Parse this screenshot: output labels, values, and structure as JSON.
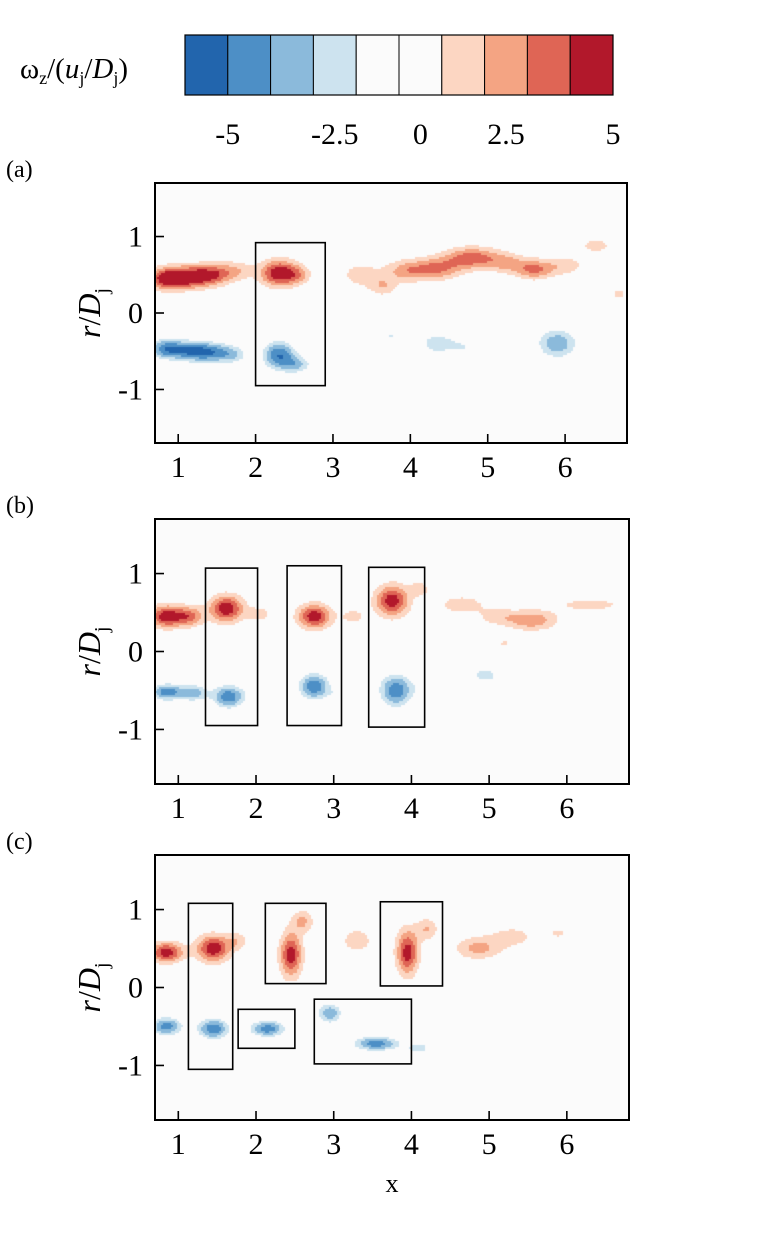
{
  "colorbar": {
    "label_parts": [
      "ω",
      "z",
      "/(",
      "u",
      "j",
      "/",
      "D",
      "j",
      ")"
    ],
    "levels": [
      -6,
      -5,
      -4,
      -3,
      -2,
      -1,
      1,
      2,
      3,
      4,
      5,
      6
    ],
    "colors": [
      "#2265ad",
      "#4d8fc6",
      "#8bbadb",
      "#cde3ef",
      "#fbfbfb",
      "#fbfbfb",
      "#fcd6c2",
      "#f4a483",
      "#df6555",
      "#b2182b"
    ],
    "ticks": [
      -5,
      -2.5,
      0,
      2.5,
      5
    ],
    "tick_labels": [
      "-5",
      "-2.5",
      "0",
      "2.5",
      "5"
    ]
  },
  "chart_data": [
    {
      "type": "heatmap",
      "panel_label": "(a)",
      "xlim": [
        0.7,
        6.8
      ],
      "ylim": [
        -1.7,
        1.7
      ],
      "xticks": [
        1,
        2,
        3,
        4,
        5,
        6
      ],
      "yticks": [
        -1,
        0,
        1
      ],
      "xtick_labels": [
        "1",
        "2",
        "3",
        "4",
        "5",
        "6"
      ],
      "ytick_labels": [
        "-1",
        "0",
        "1"
      ],
      "ylabel_parts": [
        "r",
        "/",
        "D",
        "j"
      ],
      "xlabel": "",
      "highlight_boxes": [
        {
          "x0": 2.0,
          "x1": 2.9,
          "y0": -0.95,
          "y1": 0.92
        }
      ],
      "vortices": [
        {
          "x": 0.85,
          "y": 0.45,
          "sx": 0.16,
          "sy": 0.1,
          "w": 4.8
        },
        {
          "x": 1.15,
          "y": 0.47,
          "sx": 0.17,
          "sy": 0.1,
          "w": 4.6
        },
        {
          "x": 1.45,
          "y": 0.5,
          "sx": 0.16,
          "sy": 0.1,
          "w": 3.6
        },
        {
          "x": 1.75,
          "y": 0.55,
          "sx": 0.15,
          "sy": 0.09,
          "w": 1.8
        },
        {
          "x": 2.3,
          "y": 0.52,
          "sx": 0.17,
          "sy": 0.12,
          "w": 4.9
        },
        {
          "x": 2.55,
          "y": 0.5,
          "sx": 0.12,
          "sy": 0.09,
          "w": 1.8
        },
        {
          "x": 3.35,
          "y": 0.5,
          "sx": 0.18,
          "sy": 0.12,
          "w": 1.5
        },
        {
          "x": 3.65,
          "y": 0.35,
          "sx": 0.13,
          "sy": 0.09,
          "w": 1.8
        },
        {
          "x": 3.95,
          "y": 0.55,
          "sx": 0.2,
          "sy": 0.1,
          "w": 2.4
        },
        {
          "x": 4.35,
          "y": 0.58,
          "sx": 0.22,
          "sy": 0.1,
          "w": 3.0
        },
        {
          "x": 4.8,
          "y": 0.72,
          "sx": 0.25,
          "sy": 0.1,
          "w": 3.6
        },
        {
          "x": 5.25,
          "y": 0.65,
          "sx": 0.17,
          "sy": 0.09,
          "w": 2.0
        },
        {
          "x": 5.6,
          "y": 0.57,
          "sx": 0.17,
          "sy": 0.09,
          "w": 3.2
        },
        {
          "x": 6.0,
          "y": 0.62,
          "sx": 0.18,
          "sy": 0.09,
          "w": 1.6
        },
        {
          "x": 6.4,
          "y": 0.88,
          "sx": 0.16,
          "sy": 0.08,
          "w": 1.4
        },
        {
          "x": 6.7,
          "y": 0.25,
          "sx": 0.08,
          "sy": 0.07,
          "w": 1.3
        },
        {
          "x": 0.85,
          "y": -0.47,
          "sx": 0.16,
          "sy": 0.1,
          "w": -4.7
        },
        {
          "x": 1.2,
          "y": -0.5,
          "sx": 0.17,
          "sy": 0.1,
          "w": -4.5
        },
        {
          "x": 1.5,
          "y": -0.52,
          "sx": 0.17,
          "sy": 0.1,
          "w": -3.6
        },
        {
          "x": 1.75,
          "y": -0.55,
          "sx": 0.13,
          "sy": 0.09,
          "w": -2.0
        },
        {
          "x": 2.3,
          "y": -0.55,
          "sx": 0.16,
          "sy": 0.14,
          "w": -4.8
        },
        {
          "x": 2.55,
          "y": -0.68,
          "sx": 0.15,
          "sy": 0.09,
          "w": -2.6
        },
        {
          "x": 3.35,
          "y": -0.45,
          "sx": 0.12,
          "sy": 0.09,
          "w": -1.3
        },
        {
          "x": 3.75,
          "y": -0.3,
          "sx": 0.13,
          "sy": 0.1,
          "w": -2.0
        },
        {
          "x": 4.35,
          "y": -0.4,
          "sx": 0.2,
          "sy": 0.12,
          "w": -2.6
        },
        {
          "x": 4.75,
          "y": -0.45,
          "sx": 0.15,
          "sy": 0.1,
          "w": -1.6
        },
        {
          "x": 3.9,
          "y": -0.72,
          "sx": 0.16,
          "sy": 0.08,
          "w": -1.2
        },
        {
          "x": 5.9,
          "y": -0.4,
          "sx": 0.2,
          "sy": 0.15,
          "w": -3.8
        },
        {
          "x": 6.6,
          "y": -0.45,
          "sx": 0.14,
          "sy": 0.1,
          "w": -2.0
        },
        {
          "x": 3.2,
          "y": -0.75,
          "sx": 0.1,
          "sy": 0.07,
          "w": -1.1
        }
      ]
    },
    {
      "type": "heatmap",
      "panel_label": "(b)",
      "xlim": [
        0.7,
        6.8
      ],
      "ylim": [
        -1.7,
        1.7
      ],
      "xticks": [
        1,
        2,
        3,
        4,
        5,
        6
      ],
      "yticks": [
        -1,
        0,
        1
      ],
      "xtick_labels": [
        "1",
        "2",
        "3",
        "4",
        "5",
        "6"
      ],
      "ytick_labels": [
        "-1",
        "0",
        "1"
      ],
      "ylabel_parts": [
        "r",
        "/",
        "D",
        "j"
      ],
      "xlabel": "",
      "highlight_boxes": [
        {
          "x0": 1.35,
          "x1": 2.02,
          "y0": -0.95,
          "y1": 1.07
        },
        {
          "x0": 2.4,
          "x1": 3.1,
          "y0": -0.95,
          "y1": 1.1
        },
        {
          "x0": 3.45,
          "x1": 4.17,
          "y0": -0.97,
          "y1": 1.08
        }
      ],
      "vortices": [
        {
          "x": 0.85,
          "y": 0.45,
          "sx": 0.16,
          "sy": 0.1,
          "w": 4.7
        },
        {
          "x": 1.15,
          "y": 0.45,
          "sx": 0.13,
          "sy": 0.09,
          "w": 3.0
        },
        {
          "x": 1.62,
          "y": 0.55,
          "sx": 0.15,
          "sy": 0.12,
          "w": 4.9
        },
        {
          "x": 2.05,
          "y": 0.48,
          "sx": 0.12,
          "sy": 0.08,
          "w": 1.4
        },
        {
          "x": 2.75,
          "y": 0.45,
          "sx": 0.15,
          "sy": 0.11,
          "w": 4.7
        },
        {
          "x": 3.25,
          "y": 0.45,
          "sx": 0.12,
          "sy": 0.08,
          "w": 1.4
        },
        {
          "x": 3.75,
          "y": 0.65,
          "sx": 0.15,
          "sy": 0.14,
          "w": 4.7
        },
        {
          "x": 4.1,
          "y": 0.8,
          "sx": 0.1,
          "sy": 0.07,
          "w": 1.6
        },
        {
          "x": 4.65,
          "y": 0.6,
          "sx": 0.2,
          "sy": 0.08,
          "w": 1.8
        },
        {
          "x": 5.1,
          "y": 0.45,
          "sx": 0.18,
          "sy": 0.08,
          "w": 1.4
        },
        {
          "x": 5.55,
          "y": 0.4,
          "sx": 0.23,
          "sy": 0.09,
          "w": 2.8
        },
        {
          "x": 6.3,
          "y": 0.6,
          "sx": 0.35,
          "sy": 0.07,
          "w": 1.4
        },
        {
          "x": 5.2,
          "y": 0.1,
          "sx": 0.08,
          "sy": 0.06,
          "w": 1.1
        },
        {
          "x": 0.85,
          "y": -0.52,
          "sx": 0.15,
          "sy": 0.08,
          "w": -4.6
        },
        {
          "x": 1.2,
          "y": -0.53,
          "sx": 0.13,
          "sy": 0.08,
          "w": -3.6
        },
        {
          "x": 1.65,
          "y": -0.58,
          "sx": 0.15,
          "sy": 0.11,
          "w": -4.8
        },
        {
          "x": 2.05,
          "y": -0.5,
          "sx": 0.12,
          "sy": 0.08,
          "w": -1.6
        },
        {
          "x": 2.75,
          "y": -0.45,
          "sx": 0.15,
          "sy": 0.13,
          "w": -4.8
        },
        {
          "x": 3.1,
          "y": -0.55,
          "sx": 0.1,
          "sy": 0.07,
          "w": -1.6
        },
        {
          "x": 3.8,
          "y": -0.5,
          "sx": 0.16,
          "sy": 0.16,
          "w": -4.7
        },
        {
          "x": 4.35,
          "y": -0.45,
          "sx": 0.2,
          "sy": 0.1,
          "w": -1.8
        },
        {
          "x": 4.95,
          "y": -0.3,
          "sx": 0.18,
          "sy": 0.1,
          "w": -2.3
        },
        {
          "x": 5.5,
          "y": -0.5,
          "sx": 0.25,
          "sy": 0.12,
          "w": -1.6
        },
        {
          "x": 6.2,
          "y": -0.4,
          "sx": 0.2,
          "sy": 0.09,
          "w": -1.2
        },
        {
          "x": 6.7,
          "y": -0.4,
          "sx": 0.09,
          "sy": 0.1,
          "w": -1.4
        },
        {
          "x": 5.5,
          "y": -1.15,
          "sx": 0.15,
          "sy": 0.08,
          "w": -1.3
        },
        {
          "x": 5.0,
          "y": -1.35,
          "sx": 0.12,
          "sy": 0.06,
          "w": -1.1
        }
      ]
    },
    {
      "type": "heatmap",
      "panel_label": "(c)",
      "xlim": [
        0.7,
        6.8
      ],
      "ylim": [
        -1.7,
        1.7
      ],
      "xticks": [
        1,
        2,
        3,
        4,
        5,
        6
      ],
      "yticks": [
        -1,
        0,
        1
      ],
      "xtick_labels": [
        "1",
        "2",
        "3",
        "4",
        "5",
        "6"
      ],
      "ytick_labels": [
        "-1",
        "0",
        "1"
      ],
      "ylabel_parts": [
        "r",
        "/",
        "D",
        "j"
      ],
      "xlabel": "x",
      "highlight_boxes": [
        {
          "x0": 1.13,
          "x1": 1.7,
          "y0": -1.05,
          "y1": 1.08
        },
        {
          "x0": 2.12,
          "x1": 2.9,
          "y0": 0.05,
          "y1": 1.08
        },
        {
          "x0": 3.6,
          "x1": 4.4,
          "y0": 0.02,
          "y1": 1.1
        },
        {
          "x0": 1.77,
          "x1": 2.5,
          "y0": -0.78,
          "y1": -0.28
        },
        {
          "x0": 2.75,
          "x1": 4.0,
          "y0": -0.98,
          "y1": -0.15
        }
      ],
      "vortices": [
        {
          "x": 0.85,
          "y": 0.45,
          "sx": 0.15,
          "sy": 0.09,
          "w": 4.7
        },
        {
          "x": 1.45,
          "y": 0.5,
          "sx": 0.15,
          "sy": 0.12,
          "w": 4.8
        },
        {
          "x": 1.75,
          "y": 0.6,
          "sx": 0.1,
          "sy": 0.08,
          "w": 1.6
        },
        {
          "x": 2.45,
          "y": 0.42,
          "sx": 0.1,
          "sy": 0.2,
          "w": 4.6
        },
        {
          "x": 2.6,
          "y": 0.85,
          "sx": 0.1,
          "sy": 0.1,
          "w": 2.2
        },
        {
          "x": 3.3,
          "y": 0.6,
          "sx": 0.15,
          "sy": 0.12,
          "w": 1.6
        },
        {
          "x": 3.95,
          "y": 0.45,
          "sx": 0.1,
          "sy": 0.2,
          "w": 4.6
        },
        {
          "x": 4.2,
          "y": 0.75,
          "sx": 0.1,
          "sy": 0.1,
          "w": 2.0
        },
        {
          "x": 4.85,
          "y": 0.5,
          "sx": 0.2,
          "sy": 0.1,
          "w": 2.3
        },
        {
          "x": 5.3,
          "y": 0.65,
          "sx": 0.25,
          "sy": 0.12,
          "w": 1.3
        },
        {
          "x": 5.9,
          "y": 0.7,
          "sx": 0.15,
          "sy": 0.1,
          "w": 1.0
        },
        {
          "x": 0.85,
          "y": -0.5,
          "sx": 0.15,
          "sy": 0.09,
          "w": -4.5
        },
        {
          "x": 1.45,
          "y": -0.53,
          "sx": 0.15,
          "sy": 0.1,
          "w": -4.8
        },
        {
          "x": 2.15,
          "y": -0.53,
          "sx": 0.17,
          "sy": 0.08,
          "w": -4.6
        },
        {
          "x": 2.95,
          "y": -0.33,
          "sx": 0.12,
          "sy": 0.1,
          "w": -3.8
        },
        {
          "x": 3.55,
          "y": -0.72,
          "sx": 0.22,
          "sy": 0.07,
          "w": -4.6
        },
        {
          "x": 4.1,
          "y": -0.78,
          "sx": 0.12,
          "sy": 0.06,
          "w": -2.5
        },
        {
          "x": 4.7,
          "y": -0.35,
          "sx": 0.15,
          "sy": 0.1,
          "w": -1.7
        },
        {
          "x": 5.45,
          "y": -0.2,
          "sx": 0.1,
          "sy": 0.2,
          "w": -1.4
        },
        {
          "x": 5.9,
          "y": -0.6,
          "sx": 0.12,
          "sy": 0.08,
          "w": -1.2
        },
        {
          "x": 5.1,
          "y": -1.0,
          "sx": 0.12,
          "sy": 0.08,
          "w": -1.2
        },
        {
          "x": 6.6,
          "y": -0.35,
          "sx": 0.15,
          "sy": 0.08,
          "w": -1.1
        },
        {
          "x": 4.6,
          "y": -1.1,
          "sx": 0.1,
          "sy": 0.06,
          "w": -1.1
        }
      ]
    }
  ]
}
